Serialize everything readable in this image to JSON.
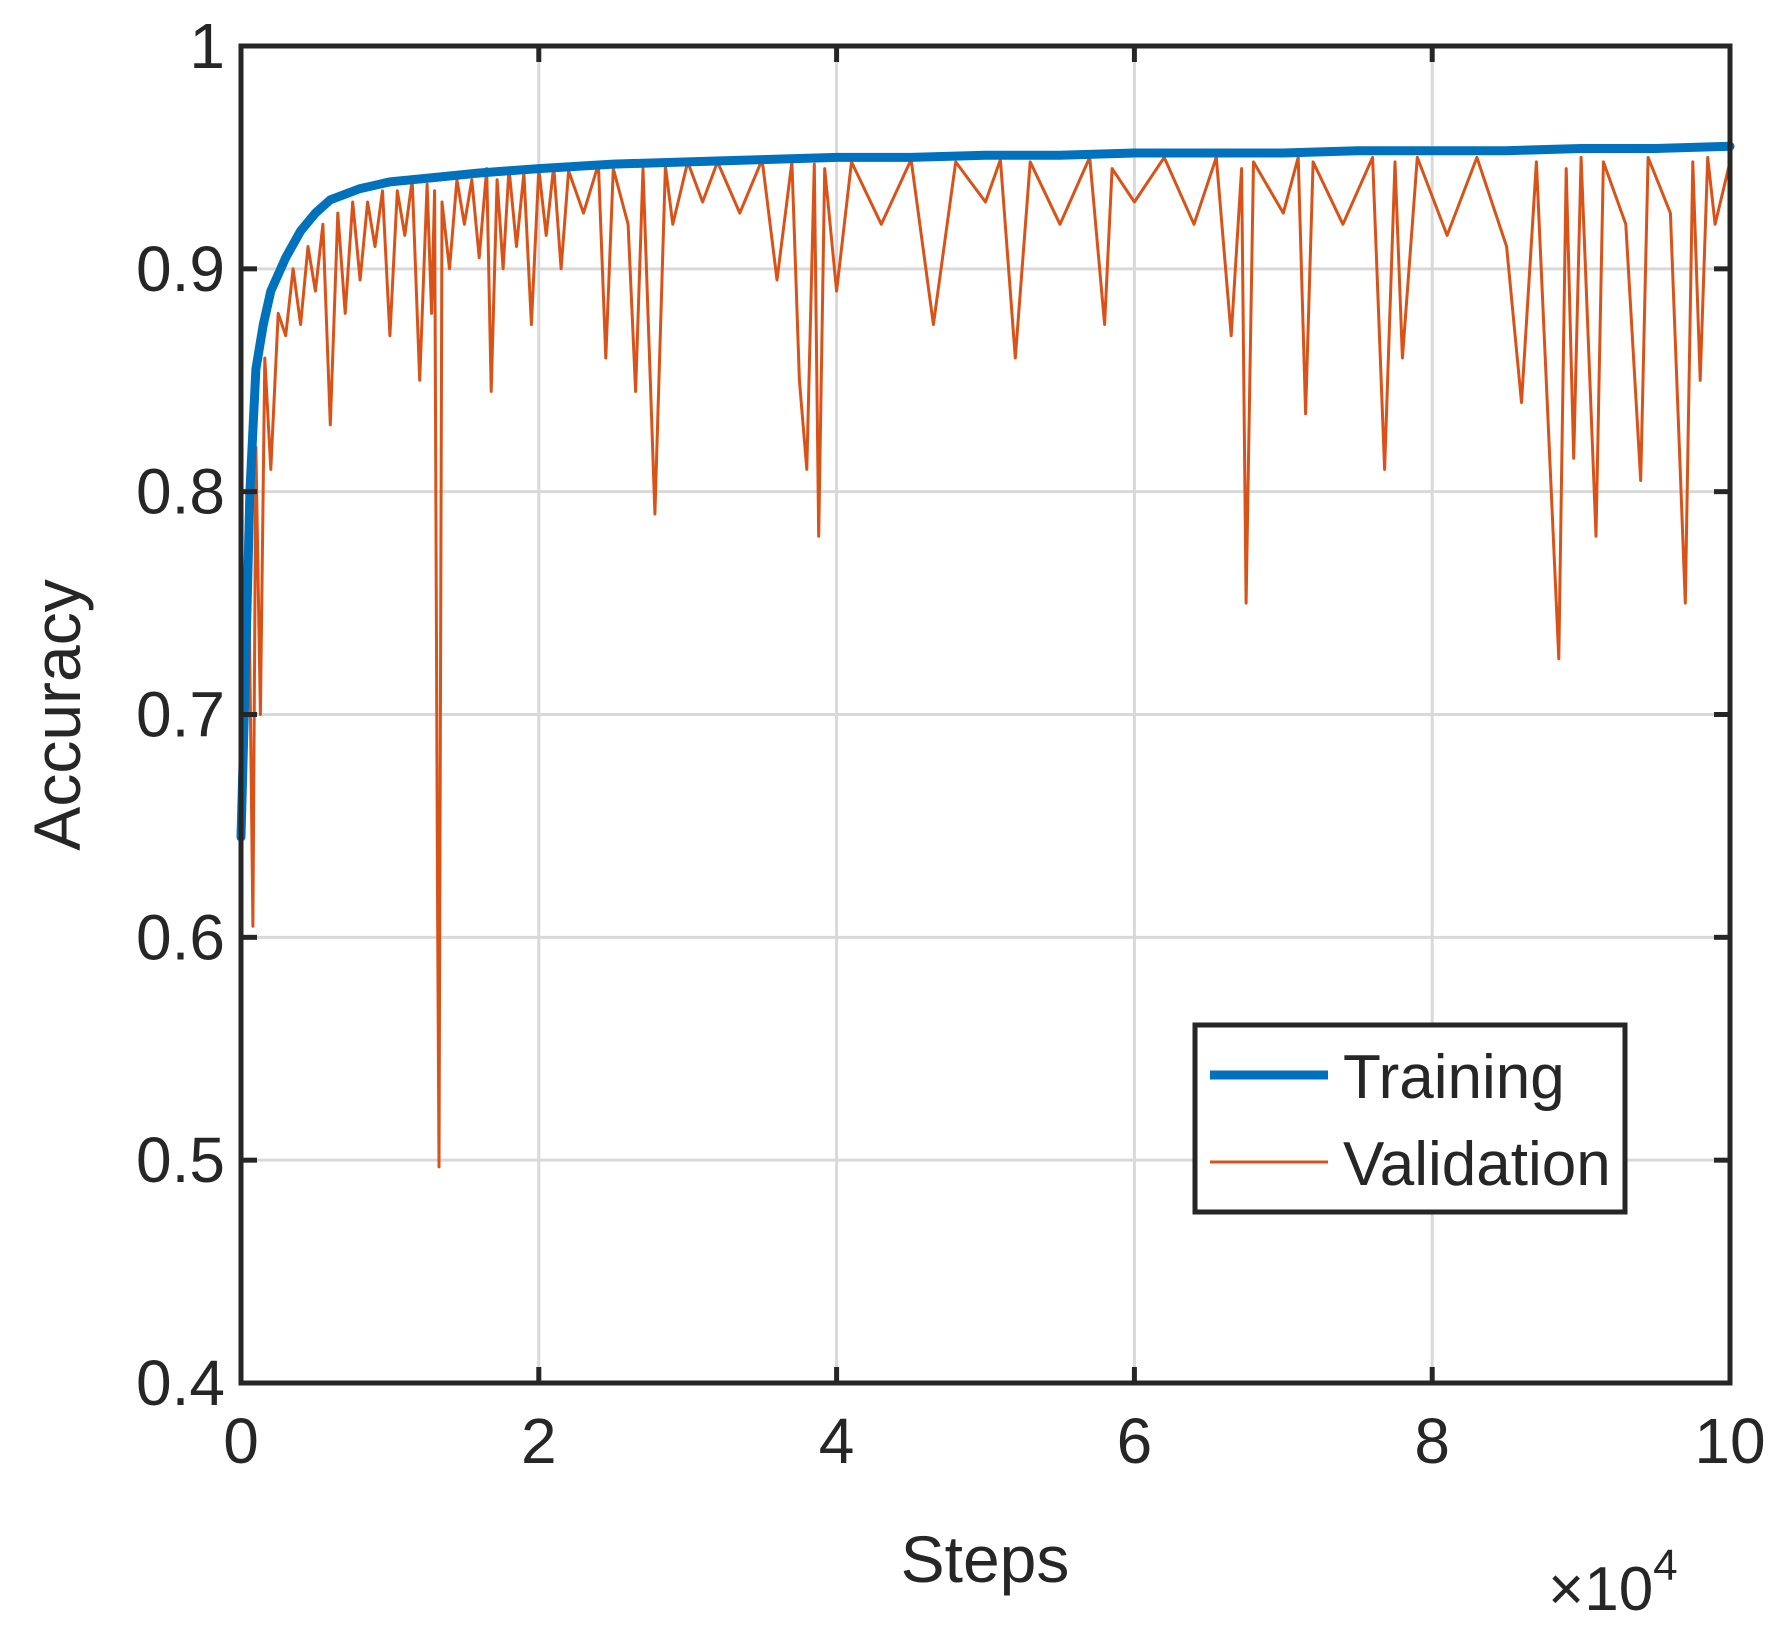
{
  "chart_data": {
    "type": "line",
    "title": "",
    "xlabel": "Steps",
    "ylabel": "Accuracy",
    "x_multiplier_label": "×10",
    "x_multiplier_exponent": "4",
    "xlim": [
      0,
      10
    ],
    "ylim": [
      0.4,
      1
    ],
    "xticks": [
      0,
      2,
      4,
      6,
      8,
      10
    ],
    "xtick_labels": [
      "0",
      "2",
      "4",
      "6",
      "8",
      "10"
    ],
    "yticks": [
      0.4,
      0.5,
      0.6,
      0.7,
      0.8,
      0.9,
      1
    ],
    "ytick_labels": [
      "0.4",
      "0.5",
      "0.6",
      "0.7",
      "0.8",
      "0.9",
      "1"
    ],
    "grid": true,
    "legend_position": "lower-right",
    "series": [
      {
        "name": "Training",
        "color": "#0072BD",
        "line_width": "thick",
        "points": [
          [
            0.0,
            0.645
          ],
          [
            0.03,
            0.72
          ],
          [
            0.06,
            0.8
          ],
          [
            0.1,
            0.855
          ],
          [
            0.15,
            0.875
          ],
          [
            0.2,
            0.89
          ],
          [
            0.3,
            0.905
          ],
          [
            0.4,
            0.917
          ],
          [
            0.5,
            0.925
          ],
          [
            0.6,
            0.931
          ],
          [
            0.8,
            0.936
          ],
          [
            1.0,
            0.939
          ],
          [
            1.3,
            0.941
          ],
          [
            1.6,
            0.943
          ],
          [
            2.0,
            0.945
          ],
          [
            2.5,
            0.947
          ],
          [
            3.0,
            0.948
          ],
          [
            3.5,
            0.949
          ],
          [
            4.0,
            0.95
          ],
          [
            4.5,
            0.95
          ],
          [
            5.0,
            0.951
          ],
          [
            5.5,
            0.951
          ],
          [
            6.0,
            0.952
          ],
          [
            6.5,
            0.952
          ],
          [
            7.0,
            0.952
          ],
          [
            7.5,
            0.953
          ],
          [
            8.0,
            0.953
          ],
          [
            8.5,
            0.953
          ],
          [
            9.0,
            0.954
          ],
          [
            9.5,
            0.954
          ],
          [
            10.0,
            0.955
          ]
        ]
      },
      {
        "name": "Validation",
        "color": "#D95319",
        "line_width": "thin",
        "points": [
          [
            0.0,
            0.645
          ],
          [
            0.03,
            0.7
          ],
          [
            0.05,
            0.78
          ],
          [
            0.08,
            0.605
          ],
          [
            0.1,
            0.82
          ],
          [
            0.13,
            0.7
          ],
          [
            0.16,
            0.86
          ],
          [
            0.2,
            0.81
          ],
          [
            0.25,
            0.88
          ],
          [
            0.3,
            0.87
          ],
          [
            0.35,
            0.9
          ],
          [
            0.4,
            0.875
          ],
          [
            0.45,
            0.91
          ],
          [
            0.5,
            0.89
          ],
          [
            0.55,
            0.92
          ],
          [
            0.6,
            0.83
          ],
          [
            0.65,
            0.925
          ],
          [
            0.7,
            0.88
          ],
          [
            0.75,
            0.93
          ],
          [
            0.8,
            0.895
          ],
          [
            0.85,
            0.93
          ],
          [
            0.9,
            0.91
          ],
          [
            0.95,
            0.935
          ],
          [
            1.0,
            0.87
          ],
          [
            1.05,
            0.935
          ],
          [
            1.1,
            0.915
          ],
          [
            1.15,
            0.94
          ],
          [
            1.2,
            0.85
          ],
          [
            1.25,
            0.938
          ],
          [
            1.28,
            0.88
          ],
          [
            1.3,
            0.935
          ],
          [
            1.32,
            0.62
          ],
          [
            1.33,
            0.497
          ],
          [
            1.35,
            0.93
          ],
          [
            1.4,
            0.9
          ],
          [
            1.45,
            0.94
          ],
          [
            1.5,
            0.92
          ],
          [
            1.55,
            0.94
          ],
          [
            1.6,
            0.905
          ],
          [
            1.65,
            0.945
          ],
          [
            1.68,
            0.845
          ],
          [
            1.72,
            0.94
          ],
          [
            1.76,
            0.9
          ],
          [
            1.8,
            0.945
          ],
          [
            1.85,
            0.91
          ],
          [
            1.9,
            0.943
          ],
          [
            1.95,
            0.875
          ],
          [
            2.0,
            0.945
          ],
          [
            2.05,
            0.915
          ],
          [
            2.1,
            0.946
          ],
          [
            2.15,
            0.9
          ],
          [
            2.2,
            0.944
          ],
          [
            2.3,
            0.925
          ],
          [
            2.4,
            0.947
          ],
          [
            2.45,
            0.86
          ],
          [
            2.5,
            0.945
          ],
          [
            2.6,
            0.92
          ],
          [
            2.65,
            0.845
          ],
          [
            2.7,
            0.945
          ],
          [
            2.78,
            0.79
          ],
          [
            2.85,
            0.946
          ],
          [
            2.9,
            0.92
          ],
          [
            3.0,
            0.948
          ],
          [
            3.1,
            0.93
          ],
          [
            3.2,
            0.948
          ],
          [
            3.35,
            0.925
          ],
          [
            3.5,
            0.949
          ],
          [
            3.6,
            0.895
          ],
          [
            3.7,
            0.948
          ],
          [
            3.75,
            0.85
          ],
          [
            3.8,
            0.81
          ],
          [
            3.85,
            0.947
          ],
          [
            3.88,
            0.78
          ],
          [
            3.92,
            0.945
          ],
          [
            4.0,
            0.89
          ],
          [
            4.1,
            0.948
          ],
          [
            4.3,
            0.92
          ],
          [
            4.5,
            0.949
          ],
          [
            4.65,
            0.875
          ],
          [
            4.8,
            0.948
          ],
          [
            5.0,
            0.93
          ],
          [
            5.1,
            0.949
          ],
          [
            5.2,
            0.86
          ],
          [
            5.3,
            0.948
          ],
          [
            5.5,
            0.92
          ],
          [
            5.7,
            0.95
          ],
          [
            5.8,
            0.875
          ],
          [
            5.85,
            0.945
          ],
          [
            6.0,
            0.93
          ],
          [
            6.2,
            0.95
          ],
          [
            6.4,
            0.92
          ],
          [
            6.55,
            0.95
          ],
          [
            6.65,
            0.87
          ],
          [
            6.72,
            0.945
          ],
          [
            6.75,
            0.75
          ],
          [
            6.8,
            0.948
          ],
          [
            7.0,
            0.925
          ],
          [
            7.1,
            0.95
          ],
          [
            7.15,
            0.835
          ],
          [
            7.2,
            0.948
          ],
          [
            7.4,
            0.92
          ],
          [
            7.6,
            0.95
          ],
          [
            7.68,
            0.81
          ],
          [
            7.75,
            0.948
          ],
          [
            7.8,
            0.86
          ],
          [
            7.9,
            0.95
          ],
          [
            8.1,
            0.915
          ],
          [
            8.3,
            0.95
          ],
          [
            8.5,
            0.91
          ],
          [
            8.6,
            0.84
          ],
          [
            8.7,
            0.948
          ],
          [
            8.85,
            0.725
          ],
          [
            8.9,
            0.945
          ],
          [
            8.95,
            0.815
          ],
          [
            9.0,
            0.95
          ],
          [
            9.1,
            0.78
          ],
          [
            9.15,
            0.948
          ],
          [
            9.3,
            0.92
          ],
          [
            9.4,
            0.805
          ],
          [
            9.45,
            0.95
          ],
          [
            9.6,
            0.925
          ],
          [
            9.7,
            0.75
          ],
          [
            9.75,
            0.948
          ],
          [
            9.8,
            0.85
          ],
          [
            9.85,
            0.95
          ],
          [
            9.9,
            0.92
          ],
          [
            10.0,
            0.948
          ]
        ]
      }
    ]
  }
}
